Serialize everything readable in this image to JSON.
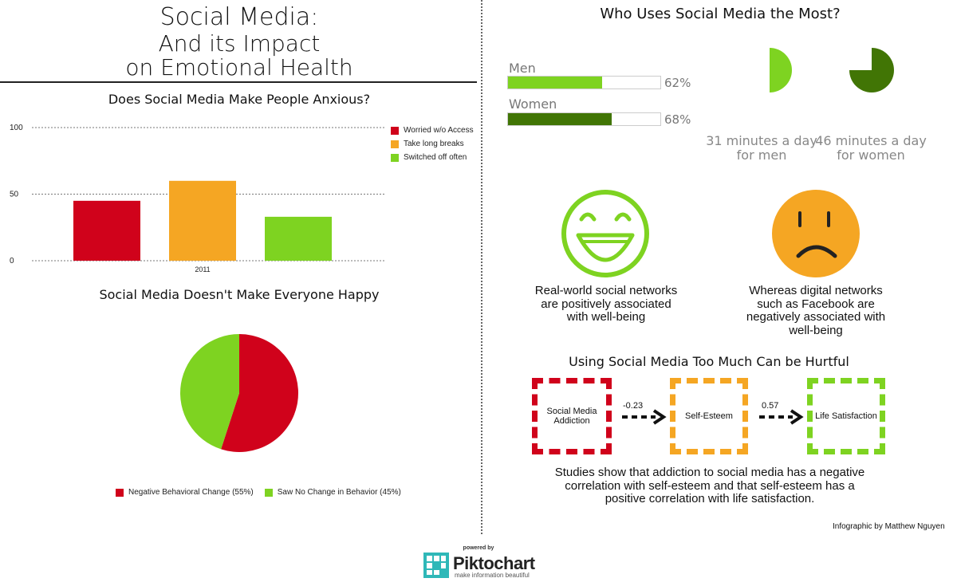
{
  "header": {
    "title_line1": "Social Media:",
    "title_line2": "And its Impact",
    "title_line3": "on Emotional Health"
  },
  "anxious": {
    "heading": "Does Social Media Make People Anxious?"
  },
  "happy": {
    "heading": "Social Media Doesn't Make Everyone Happy"
  },
  "who": {
    "heading": "Who Uses Social Media the Most?",
    "men_label": "Men",
    "women_label": "Women",
    "men_pct": "62%",
    "women_pct": "68%",
    "men_fraction": 0.62,
    "women_fraction": 0.68,
    "men_minutes_line1": "31 minutes a day",
    "men_minutes_line2": "for men",
    "women_minutes_line1": "46 minutes a day",
    "women_minutes_line2": "for women",
    "men_color": "#7ed321",
    "women_color": "#417505",
    "men_pie_fraction": 0.5,
    "women_pie_fraction": 0.75
  },
  "networks": {
    "positive_caption": "Real-world social networks are positively associated with well-being",
    "negative_caption": "Whereas digital networks such as Facebook are negatively associated with well-being",
    "smile_icon": "smiley-face-icon",
    "sad_icon": "sad-face-icon"
  },
  "hurtful": {
    "heading": "Using Social Media Too Much Can be Hurtful",
    "box1": "Social Media Addiction",
    "box2": "Self-Esteem",
    "box3": "Life Satisfaction",
    "corr1": "-0.23",
    "corr2": "0.57",
    "box1_color": "#d0021b",
    "box2_color": "#f5a623",
    "box3_color": "#7ed321",
    "summary": "Studies show that addiction to social media has a negative correlation with self-esteem and that self-esteem has a positive correlation with life satisfaction."
  },
  "footer": {
    "credit": "Infographic by Matthew Nguyen",
    "powered_by": "powered by",
    "brand_name": "Piktochart",
    "brand_tagline": "make information beautiful"
  },
  "chart_data": [
    {
      "type": "bar",
      "title": "Does Social Media Make People Anxious?",
      "categories": [
        "2011"
      ],
      "series": [
        {
          "name": "Worried w/o Access",
          "values": [
            45
          ],
          "color": "#d0021b"
        },
        {
          "name": "Take long breaks",
          "values": [
            60
          ],
          "color": "#f5a623"
        },
        {
          "name": "Switched off often",
          "values": [
            33
          ],
          "color": "#7ed321"
        }
      ],
      "yticks": [
        "0",
        "50",
        "100"
      ],
      "ylim": [
        0,
        100
      ],
      "legend": "top-right",
      "grid": true
    },
    {
      "type": "pie",
      "title": "Social Media Doesn't Make Everyone Happy",
      "slices": [
        {
          "name": "Negative Behavioral Change (55%)",
          "value": 55,
          "color": "#d0021b"
        },
        {
          "name": "Saw No Change in Behavior (45%)",
          "value": 45,
          "color": "#7ed321"
        }
      ],
      "legend": "bottom"
    }
  ]
}
